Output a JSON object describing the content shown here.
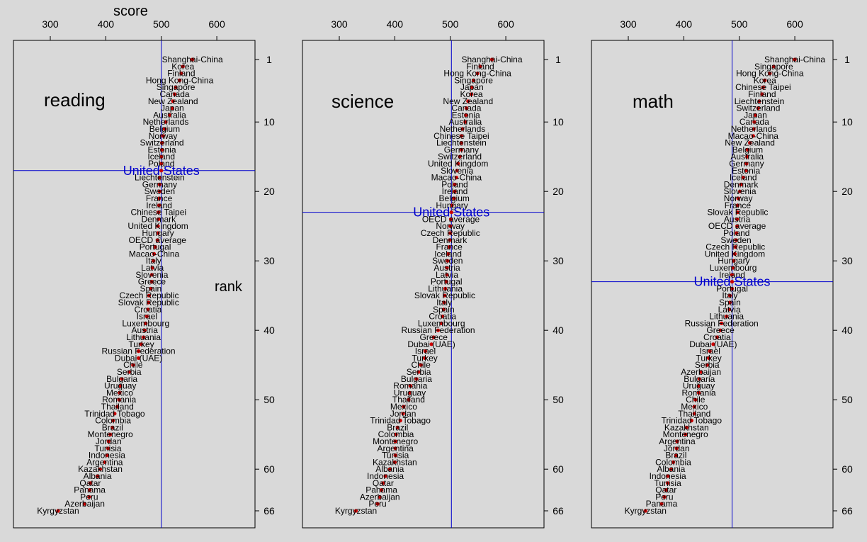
{
  "chart_data": [
    {
      "type": "scatter",
      "title": "reading",
      "xlabel": "score",
      "ylabel": "rank",
      "xlim": [
        240,
        660
      ],
      "ylim": [
        66,
        0
      ],
      "xticks": [
        300,
        400,
        500,
        600
      ],
      "yticks": [
        1,
        10,
        20,
        30,
        40,
        50,
        60,
        66
      ],
      "highlight": "United States",
      "countries": [
        "Shanghai-China",
        "Korea",
        "Finland",
        "Hong Kong-China",
        "Singapore",
        "Canada",
        "New Zealand",
        "Japan",
        "Australia",
        "Netherlands",
        "Belgium",
        "Norway",
        "Switzerland",
        "Estonia",
        "Iceland",
        "Poland",
        "United States",
        "Liechtenstein",
        "Germany",
        "Sweden",
        "France",
        "Ireland",
        "Chinese Taipei",
        "Denmark",
        "United Kingdom",
        "Hungary",
        "OECD average",
        "Portugal",
        "Macao-China",
        "Italy",
        "Latvia",
        "Slovenia",
        "Greece",
        "Spain",
        "Czech Republic",
        "Slovak Republic",
        "Croatia",
        "Israel",
        "Luxembourg",
        "Austria",
        "Lithuania",
        "Turkey",
        "Russian Federation",
        "Dubai (UAE)",
        "Chile",
        "Serbia",
        "Bulgaria",
        "Uruguay",
        "Mexico",
        "Romania",
        "Thailand",
        "Trinidad Tobago",
        "Colombia",
        "Brazil",
        "Montenegro",
        "Jordan",
        "Tunisia",
        "Indonesia",
        "Argentina",
        "Kazakhstan",
        "Albania",
        "Qatar",
        "Panama",
        "Peru",
        "Azerbaijan",
        "Kyrgyzstan"
      ],
      "scores": [
        556,
        539,
        536,
        533,
        526,
        524,
        521,
        520,
        515,
        508,
        506,
        503,
        501,
        501,
        500,
        500,
        500,
        497,
        497,
        497,
        496,
        496,
        495,
        495,
        494,
        494,
        493,
        489,
        487,
        486,
        484,
        483,
        483,
        481,
        478,
        477,
        476,
        474,
        472,
        470,
        468,
        464,
        459,
        459,
        449,
        442,
        429,
        426,
        425,
        424,
        421,
        416,
        413,
        412,
        408,
        405,
        404,
        402,
        398,
        390,
        385,
        372,
        371,
        370,
        362,
        314
      ],
      "ranks": [
        1,
        2,
        3,
        4,
        5,
        6,
        7,
        8,
        9,
        10,
        11,
        12,
        13,
        14,
        15,
        16,
        17,
        18,
        19,
        20,
        21,
        22,
        23,
        24,
        25,
        26,
        27,
        28,
        29,
        30,
        31,
        32,
        33,
        34,
        35,
        36,
        37,
        38,
        39,
        40,
        41,
        42,
        43,
        44,
        45,
        46,
        47,
        48,
        49,
        50,
        51,
        52,
        53,
        54,
        55,
        56,
        57,
        58,
        59,
        60,
        61,
        62,
        63,
        64,
        65,
        66
      ]
    },
    {
      "type": "scatter",
      "title": "science",
      "xlabel": "",
      "ylabel": "",
      "xlim": [
        240,
        660
      ],
      "ylim": [
        66,
        0
      ],
      "xticks": [
        300,
        400,
        500,
        600
      ],
      "yticks": [
        1,
        10,
        20,
        30,
        40,
        50,
        60,
        66
      ],
      "highlight": "United States",
      "countries": [
        "Shanghai-China",
        "Finland",
        "Hong Kong-China",
        "Singapore",
        "Japan",
        "Korea",
        "New Zealand",
        "Canada",
        "Estonia",
        "Australia",
        "Netherlands",
        "Chinese Taipei",
        "Liechtenstein",
        "Germany",
        "Switzerland",
        "United Kingdom",
        "Slovenia",
        "Macao-China",
        "Poland",
        "Ireland",
        "Belgium",
        "Hungary",
        "United States",
        "OECD average",
        "Norway",
        "Czech Republic",
        "Denmark",
        "France",
        "Iceland",
        "Sweden",
        "Austria",
        "Latvia",
        "Portugal",
        "Lithuania",
        "Slovak Republic",
        "Italy",
        "Spain",
        "Croatia",
        "Luxembourg",
        "Russian Federation",
        "Greece",
        "Dubai (UAE)",
        "Israel",
        "Turkey",
        "Chile",
        "Serbia",
        "Bulgaria",
        "Romania",
        "Uruguay",
        "Thailand",
        "Mexico",
        "Jordan",
        "Trinidad Tobago",
        "Brazil",
        "Colombia",
        "Montenegro",
        "Argentina",
        "Tunisia",
        "Kazakhstan",
        "Albania",
        "Indonesia",
        "Qatar",
        "Panama",
        "Azerbaijan",
        "Peru",
        "Kyrgyzstan"
      ],
      "scores": [
        575,
        554,
        549,
        542,
        539,
        538,
        532,
        529,
        528,
        527,
        522,
        520,
        520,
        520,
        517,
        514,
        512,
        511,
        508,
        508,
        507,
        503,
        502,
        501,
        500,
        500,
        499,
        498,
        496,
        495,
        494,
        494,
        493,
        491,
        490,
        489,
        488,
        486,
        484,
        478,
        470,
        466,
        455,
        454,
        447,
        443,
        439,
        428,
        427,
        425,
        416,
        415,
        410,
        405,
        402,
        401,
        401,
        401,
        400,
        391,
        383,
        379,
        376,
        373,
        369,
        330
      ],
      "ranks": [
        1,
        2,
        3,
        4,
        5,
        6,
        7,
        8,
        9,
        10,
        11,
        12,
        13,
        14,
        15,
        16,
        17,
        18,
        19,
        20,
        21,
        22,
        23,
        24,
        25,
        26,
        27,
        28,
        29,
        30,
        31,
        32,
        33,
        34,
        35,
        36,
        37,
        38,
        39,
        40,
        41,
        42,
        43,
        44,
        45,
        46,
        47,
        48,
        49,
        50,
        51,
        52,
        53,
        54,
        55,
        56,
        57,
        58,
        59,
        60,
        61,
        62,
        63,
        64,
        65,
        66
      ]
    },
    {
      "type": "scatter",
      "title": "math",
      "xlabel": "",
      "ylabel": "",
      "xlim": [
        240,
        660
      ],
      "ylim": [
        66,
        0
      ],
      "xticks": [
        300,
        400,
        500,
        600
      ],
      "yticks": [
        1,
        10,
        20,
        30,
        40,
        50,
        60,
        66
      ],
      "highlight": "United States",
      "countries": [
        "Shanghai-China",
        "Singapore",
        "Hong Kong-China",
        "Korea",
        "Chinese Taipei",
        "Finland",
        "Liechtenstein",
        "Switzerland",
        "Japan",
        "Canada",
        "Netherlands",
        "Macao-China",
        "New Zealand",
        "Belgium",
        "Australia",
        "Germany",
        "Estonia",
        "Iceland",
        "Denmark",
        "Slovenia",
        "Norway",
        "France",
        "Slovak Republic",
        "Austria",
        "OECD average",
        "Poland",
        "Sweden",
        "Czech Republic",
        "United Kingdom",
        "Hungary",
        "Luxembourg",
        "Ireland",
        "United States",
        "Portugal",
        "Italy",
        "Spain",
        "Latvia",
        "Lithuania",
        "Russian Federation",
        "Greece",
        "Croatia",
        "Dubai (UAE)",
        "Israel",
        "Turkey",
        "Serbia",
        "Azerbaijan",
        "Bulgaria",
        "Uruguay",
        "Romania",
        "Chile",
        "Mexico",
        "Thailand",
        "Trinidad Tobago",
        "Kazakhstan",
        "Montenegro",
        "Argentina",
        "Jordan",
        "Brazil",
        "Colombia",
        "Albania",
        "Indonesia",
        "Tunisia",
        "Qatar",
        "Peru",
        "Panama",
        "Kyrgyzstan"
      ],
      "scores": [
        600,
        562,
        555,
        546,
        543,
        541,
        536,
        534,
        529,
        527,
        526,
        525,
        519,
        515,
        514,
        513,
        512,
        507,
        503,
        501,
        498,
        497,
        497,
        496,
        496,
        495,
        494,
        493,
        492,
        490,
        489,
        487,
        487,
        487,
        483,
        483,
        482,
        477,
        468,
        466,
        460,
        453,
        447,
        445,
        442,
        431,
        428,
        427,
        427,
        421,
        419,
        419,
        414,
        405,
        403,
        388,
        387,
        386,
        381,
        377,
        371,
        371,
        368,
        365,
        360,
        331
      ],
      "ranks": [
        1,
        2,
        3,
        4,
        5,
        6,
        7,
        8,
        9,
        10,
        11,
        12,
        13,
        14,
        15,
        16,
        17,
        18,
        19,
        20,
        21,
        22,
        23,
        24,
        25,
        26,
        27,
        28,
        29,
        30,
        31,
        32,
        33,
        34,
        35,
        36,
        37,
        38,
        39,
        40,
        41,
        42,
        43,
        44,
        45,
        46,
        47,
        48,
        49,
        50,
        51,
        52,
        53,
        54,
        55,
        56,
        57,
        58,
        59,
        60,
        61,
        62,
        63,
        64,
        65,
        66
      ]
    }
  ],
  "colors": {
    "background": "#d9d9d9",
    "point": "#cc0000",
    "highlight": "#0000cc",
    "text": "#000000"
  }
}
